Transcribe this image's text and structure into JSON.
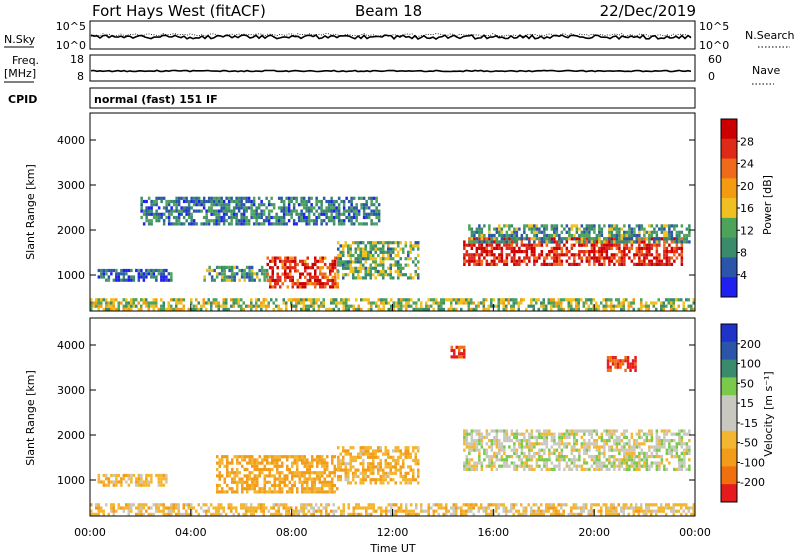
{
  "header": {
    "station": "Fort Hays West (fitACF)",
    "beam": "Beam 18",
    "date": "22/Dec/2019"
  },
  "status_panels": {
    "nsky_label": "N.Sky",
    "nsky_ticks": [
      "10^5",
      "10^0"
    ],
    "nsearch_label": "N.Search",
    "nsearch_ticks": [
      "10^5",
      "10^0"
    ],
    "freq_label_1": "Freq.",
    "freq_label_2": "[MHz]",
    "freq_ticks": [
      "18",
      "8"
    ],
    "nave_label": "Nave",
    "nave_ticks": [
      "60",
      "0"
    ],
    "cpid_label": "CPID",
    "cpid_value": "normal (fast) 151 IF"
  },
  "colors": {
    "power": [
      "#1f1ff0",
      "#2a55a8",
      "#3a8a6c",
      "#4ea35a",
      "#f0c020",
      "#f39c12",
      "#ef6a1a",
      "#e02a18",
      "#cc0000"
    ],
    "velocity": [
      "#e41a1c",
      "#f07010",
      "#f39c1a",
      "#f4b630",
      "#c8c8c0",
      "#c8c8c0",
      "#7bc94b",
      "#3a8a6c",
      "#2a55a8",
      "#1f33c8"
    ]
  },
  "chart_data": [
    {
      "type": "heatmap",
      "name": "power",
      "ylabel": "Slant Range [km]",
      "yticks": [
        1000,
        2000,
        3000,
        4000
      ],
      "ylim": [
        200,
        4600
      ],
      "xticks": [
        "00:00",
        "04:00",
        "08:00",
        "12:00",
        "16:00",
        "20:00",
        "00:00"
      ],
      "xlim_hours": [
        0,
        24
      ],
      "colorbar": {
        "label": "Power [dB]",
        "ticks": [
          4,
          8,
          12,
          16,
          20,
          24,
          28
        ],
        "range": [
          0,
          32
        ]
      },
      "regions": [
        {
          "t0": 0.3,
          "t1": 3.2,
          "r0": 850,
          "r1": 1100,
          "value": 6
        },
        {
          "t0": 4.5,
          "t1": 7.0,
          "r0": 850,
          "r1": 1200,
          "value": 10
        },
        {
          "t0": 7.0,
          "t1": 9.8,
          "r0": 700,
          "r1": 1400,
          "value": 26
        },
        {
          "t0": 9.8,
          "t1": 13.0,
          "r0": 900,
          "r1": 1700,
          "value": 12
        },
        {
          "t0": 14.8,
          "t1": 23.5,
          "r0": 1200,
          "r1": 1800,
          "value": 28
        },
        {
          "t0": 15.0,
          "t1": 23.8,
          "r0": 1700,
          "r1": 2100,
          "value": 10
        },
        {
          "t0": 2.0,
          "t1": 11.5,
          "r0": 2100,
          "r1": 2700,
          "value": 8
        },
        {
          "t0": 0.0,
          "t1": 24.0,
          "r0": 200,
          "r1": 450,
          "value": 14
        }
      ]
    },
    {
      "type": "heatmap",
      "name": "velocity",
      "ylabel": "Slant Range [km]",
      "yticks": [
        1000,
        2000,
        3000,
        4000
      ],
      "ylim": [
        200,
        4600
      ],
      "xticks": [
        "00:00",
        "04:00",
        "08:00",
        "12:00",
        "16:00",
        "20:00",
        "00:00"
      ],
      "xlabel": "Time UT",
      "xlim_hours": [
        0,
        24
      ],
      "colorbar": {
        "label": "Velocity [m s⁻¹]",
        "ticks": [
          200,
          100,
          50,
          15,
          -15,
          -50,
          -100,
          -200
        ]
      },
      "regions": [
        {
          "t0": 5.0,
          "t1": 9.8,
          "r0": 700,
          "r1": 1500,
          "value": -60
        },
        {
          "t0": 9.8,
          "t1": 13.0,
          "r0": 900,
          "r1": 1700,
          "value": -40
        },
        {
          "t0": 14.8,
          "t1": 23.8,
          "r0": 1200,
          "r1": 2100,
          "value": 0
        },
        {
          "t0": 0.3,
          "t1": 3.0,
          "r0": 850,
          "r1": 1100,
          "value": -30
        },
        {
          "t0": 0.0,
          "t1": 24.0,
          "r0": 200,
          "r1": 450,
          "value": -30
        },
        {
          "t0": 20.5,
          "t1": 21.6,
          "r0": 3400,
          "r1": 3700,
          "value": -200
        },
        {
          "t0": 14.3,
          "t1": 14.8,
          "r0": 3700,
          "r1": 3950,
          "value": -200
        }
      ]
    }
  ]
}
